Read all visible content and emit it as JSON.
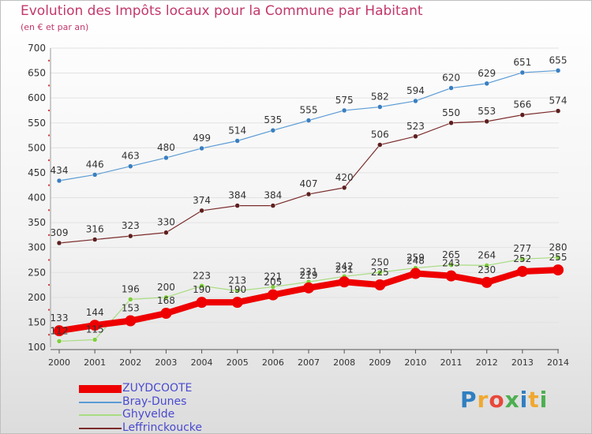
{
  "header": {
    "title": "Evolution des Impôts locaux pour la Commune par Habitant",
    "subtitle": "(en € et par an)"
  },
  "logo": {
    "text": "Proxiti",
    "colors": [
      "#2f7fc1",
      "#f0a830",
      "#e8483a",
      "#4caf50",
      "#2f7fc1",
      "#f0a830",
      "#4caf50"
    ]
  },
  "chart_data": {
    "type": "line",
    "title": "Evolution des Impôts locaux pour la Commune par Habitant",
    "subtitle": "(en € et par an)",
    "x": [
      2000,
      2001,
      2002,
      2003,
      2004,
      2005,
      2006,
      2007,
      2008,
      2009,
      2010,
      2011,
      2012,
      2013,
      2014
    ],
    "ylim": [
      100,
      700
    ],
    "yticks": [
      100,
      150,
      200,
      250,
      300,
      350,
      400,
      450,
      500,
      550,
      600,
      650,
      700
    ],
    "legend_position": "bottom-left",
    "series": [
      {
        "name": "Bray-Dunes",
        "color": "#5b9bd5",
        "marker": "#3a7fbf",
        "width": 1.2,
        "values": [
          434,
          446,
          463,
          480,
          499,
          514,
          535,
          555,
          575,
          582,
          594,
          620,
          629,
          651,
          655
        ]
      },
      {
        "name": "Leffrinckoucke",
        "color": "#7b2b2b",
        "marker": "#5e1f1f",
        "width": 1.2,
        "values": [
          309,
          316,
          323,
          330,
          374,
          384,
          384,
          407,
          420,
          506,
          523,
          550,
          553,
          566,
          574
        ]
      },
      {
        "name": "Ghyvelde",
        "color": "#a8dc80",
        "marker": "#7fcf3c",
        "width": 1.2,
        "values": [
          112,
          115,
          196,
          200,
          223,
          213,
          221,
          231,
          242,
          250,
          259,
          265,
          264,
          277,
          280
        ]
      },
      {
        "name": "ZUYDCOOTE",
        "color": "#ee0000",
        "marker": "#ee0000",
        "width": 8,
        "values": [
          133,
          144,
          153,
          168,
          190,
          190,
          205,
          219,
          231,
          225,
          248,
          243,
          230,
          252,
          255
        ]
      }
    ],
    "legend": [
      "ZUYDCOOTE",
      "Bray-Dunes",
      "Ghyvelde",
      "Leffrinckoucke"
    ]
  }
}
